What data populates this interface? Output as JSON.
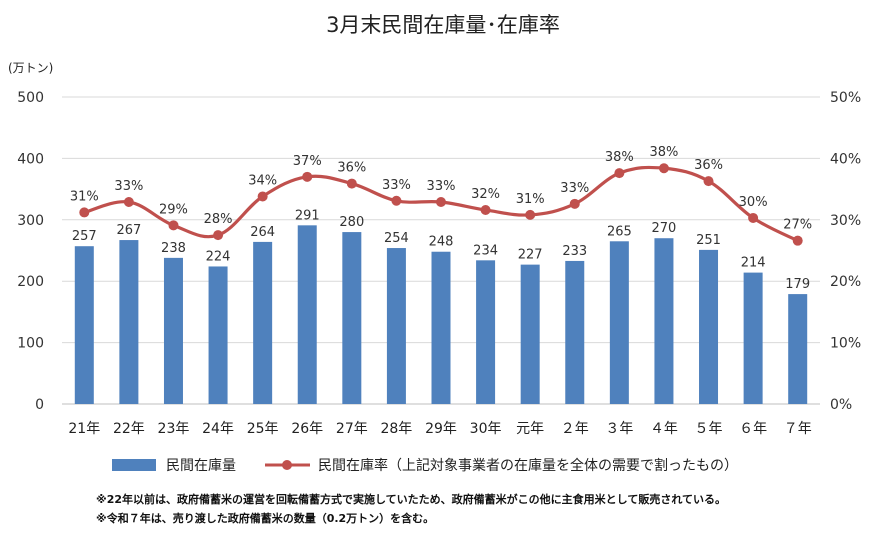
{
  "chart_data": {
    "type": "bar+line",
    "title": "3月末民間在庫量･在庫率",
    "y_unit_label": "(万トン)",
    "categories": [
      "21年",
      "22年",
      "23年",
      "24年",
      "25年",
      "26年",
      "27年",
      "28年",
      "29年",
      "30年",
      "元年",
      "２年",
      "３年",
      "４年",
      "５年",
      "６年",
      "７年"
    ],
    "series": [
      {
        "name": "民間在庫量",
        "type": "bar",
        "axis": "left",
        "color": "#4f81bd",
        "values": [
          257,
          267,
          238,
          224,
          264,
          291,
          280,
          254,
          248,
          234,
          227,
          233,
          265,
          270,
          251,
          214,
          179
        ]
      },
      {
        "name": "民間在庫率（上記対象事業者の在庫量を全体の需要で割ったもの）",
        "type": "line",
        "axis": "right",
        "color": "#c0504d",
        "values": [
          31.2,
          32.9,
          29.1,
          27.5,
          33.8,
          37.0,
          35.9,
          33.1,
          32.9,
          31.6,
          30.8,
          32.6,
          37.6,
          38.4,
          36.3,
          30.3,
          26.6
        ],
        "labels": [
          "31%",
          "33%",
          "29%",
          "28%",
          "34%",
          "37%",
          "36%",
          "33%",
          "33%",
          "32%",
          "31%",
          "33%",
          "38%",
          "38%",
          "36%",
          "30%",
          "27%"
        ]
      }
    ],
    "y_left": {
      "ticks": [
        "0",
        "100",
        "200",
        "300",
        "400",
        "500"
      ],
      "range": [
        0,
        500
      ]
    },
    "y_right": {
      "ticks": [
        "0%",
        "10%",
        "20%",
        "30%",
        "40%",
        "50%"
      ],
      "range": [
        0,
        50
      ]
    },
    "grid": true,
    "legend_position": "bottom"
  },
  "notes": [
    "※22年以前は、政府備蓄米の運営を回転備蓄方式で実施していたため、政府備蓄米がこの他に主食用米として販売されている。",
    "※令和７年は、売り渡した政府備蓄米の数量（0.2万トン）を含む。"
  ]
}
